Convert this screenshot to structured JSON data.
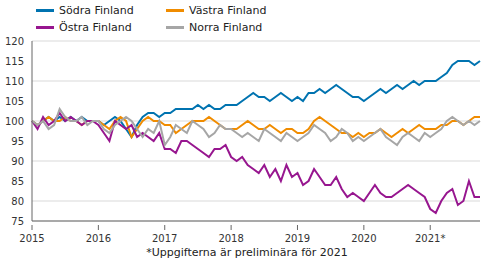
{
  "chart_data": {
    "type": "line",
    "annotation": "*Uppgifterna är preliminära för 2021",
    "categories": [
      "2015",
      null,
      null,
      null,
      null,
      null,
      null,
      null,
      null,
      null,
      null,
      null,
      "2016",
      null,
      null,
      null,
      null,
      null,
      null,
      null,
      null,
      null,
      null,
      null,
      "2017",
      null,
      null,
      null,
      null,
      null,
      null,
      null,
      null,
      null,
      null,
      null,
      "2018",
      null,
      null,
      null,
      null,
      null,
      null,
      null,
      null,
      null,
      null,
      null,
      "2019",
      null,
      null,
      null,
      null,
      null,
      null,
      null,
      null,
      null,
      null,
      null,
      "2020",
      null,
      null,
      null,
      null,
      null,
      null,
      null,
      null,
      null,
      null,
      null,
      "2021*",
      null,
      null,
      null,
      null,
      null,
      null,
      null,
      null,
      null
    ],
    "series": [
      {
        "name": "Södra Finland",
        "color": "#0073b0",
        "values": [
          100,
          99,
          100,
          101,
          100,
          101,
          100,
          101,
          100,
          101,
          100,
          100,
          100,
          99,
          100,
          101,
          100,
          98,
          96,
          99,
          101,
          102,
          102,
          101,
          102,
          102,
          103,
          103,
          103,
          103,
          104,
          103,
          104,
          103,
          103,
          104,
          104,
          104,
          105,
          106,
          107,
          106,
          106,
          105,
          106,
          107,
          106,
          105,
          106,
          105,
          107,
          107,
          108,
          107,
          108,
          109,
          108,
          107,
          106,
          106,
          105,
          106,
          107,
          108,
          107,
          108,
          109,
          108,
          109,
          110,
          109,
          110,
          110,
          110,
          111,
          112,
          114,
          115,
          115,
          115,
          114,
          115
        ]
      },
      {
        "name": "Västra Finland",
        "color": "#f08c00",
        "values": [
          100,
          99,
          100,
          101,
          100,
          100,
          101,
          100,
          100,
          99,
          100,
          100,
          100,
          99,
          98,
          100,
          101,
          100,
          96,
          98,
          100,
          101,
          100,
          100,
          99,
          99,
          97,
          98,
          99,
          100,
          100,
          100,
          101,
          100,
          99,
          98,
          98,
          98,
          99,
          100,
          99,
          98,
          98,
          99,
          98,
          97,
          98,
          98,
          97,
          97,
          98,
          100,
          101,
          100,
          99,
          98,
          97,
          97,
          96,
          97,
          96,
          97,
          97,
          98,
          97,
          96,
          97,
          98,
          97,
          98,
          99,
          98,
          98,
          98,
          99,
          99,
          100,
          100,
          99,
          100,
          101,
          101
        ]
      },
      {
        "name": "Östra Finland",
        "color": "#97168f",
        "values": [
          100,
          98,
          101,
          99,
          100,
          102,
          100,
          101,
          100,
          99,
          100,
          100,
          99,
          97,
          95,
          100,
          99,
          98,
          99,
          96,
          97,
          96,
          95,
          97,
          93,
          93,
          92,
          95,
          95,
          94,
          93,
          92,
          91,
          93,
          93,
          94,
          91,
          90,
          91,
          89,
          88,
          87,
          89,
          86,
          88,
          85,
          89,
          86,
          87,
          84,
          85,
          88,
          86,
          84,
          84,
          86,
          83,
          81,
          82,
          81,
          80,
          82,
          84,
          82,
          81,
          81,
          82,
          83,
          84,
          83,
          82,
          81,
          78,
          77,
          80,
          82,
          83,
          79,
          80,
          85,
          81,
          81
        ]
      },
      {
        "name": "Norra Finland",
        "color": "#a6a6a6",
        "values": [
          100,
          99,
          100,
          98,
          99,
          103,
          101,
          100,
          100,
          101,
          99,
          100,
          100,
          98,
          97,
          99,
          100,
          101,
          100,
          98,
          96,
          98,
          97,
          100,
          94,
          96,
          99,
          98,
          97,
          100,
          99,
          98,
          96,
          97,
          99,
          98,
          98,
          97,
          96,
          97,
          96,
          95,
          98,
          97,
          96,
          95,
          97,
          96,
          95,
          96,
          97,
          99,
          98,
          97,
          95,
          96,
          98,
          97,
          95,
          96,
          95,
          96,
          97,
          98,
          96,
          95,
          94,
          96,
          97,
          96,
          95,
          97,
          96,
          97,
          98,
          100,
          101,
          100,
          99,
          100,
          99,
          100
        ]
      }
    ],
    "ylim": [
      75,
      120
    ],
    "yticks": [
      75,
      80,
      85,
      90,
      95,
      100,
      105,
      110,
      115,
      120
    ],
    "grid": true,
    "legend": "top"
  }
}
